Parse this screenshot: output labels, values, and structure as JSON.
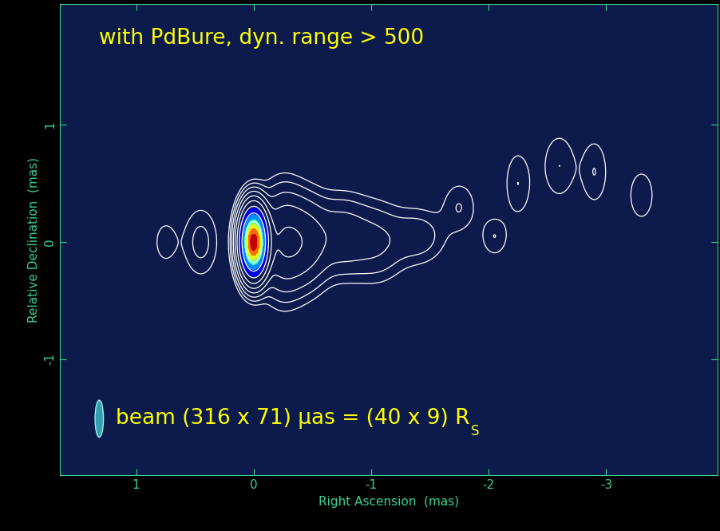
{
  "chart_data": {
    "type": "contour",
    "annotations": [
      "with PdBure, dyn. range > 500"
    ],
    "beam_label": {
      "text": "beam (316 x 71) μas = (40 x 9) R",
      "subscript": "S"
    },
    "beam": {
      "major": 316,
      "minor": 71
    },
    "x_label": "Right Ascension  (mas)",
    "y_label": "Relative Declination  (mas)",
    "xlim": [
      1.65,
      -3.95
    ],
    "ylim": [
      -1.99,
      2.03
    ],
    "xticks": [
      1,
      0,
      -1,
      -2,
      -3
    ],
    "yticks": [
      -1,
      0,
      1
    ],
    "components": [
      {
        "x": 0.0,
        "y": 0.0,
        "flux": 1.0,
        "size_x": 0.06,
        "size_y": 0.15
      },
      {
        "x": -0.25,
        "y": 0.0,
        "flux": 0.03,
        "size_x": 0.12,
        "size_y": 0.25
      },
      {
        "x": -0.45,
        "y": 0.0,
        "flux": 0.02,
        "size_x": 0.12,
        "size_y": 0.22
      },
      {
        "x": -0.75,
        "y": 0.05,
        "flux": 0.012,
        "size_x": 0.15,
        "size_y": 0.2
      },
      {
        "x": -1.05,
        "y": 0.0,
        "flux": 0.008,
        "size_x": 0.15,
        "size_y": 0.2
      },
      {
        "x": -1.4,
        "y": 0.05,
        "flux": 0.006,
        "size_x": 0.15,
        "size_y": 0.15
      },
      {
        "x": -1.75,
        "y": 0.3,
        "flux": 0.004,
        "size_x": 0.1,
        "size_y": 0.15
      },
      {
        "x": -2.05,
        "y": 0.05,
        "flux": 0.004,
        "size_x": 0.08,
        "size_y": 0.12
      },
      {
        "x": -2.25,
        "y": 0.5,
        "flux": 0.004,
        "size_x": 0.08,
        "size_y": 0.2
      },
      {
        "x": -2.6,
        "y": 0.65,
        "flux": 0.004,
        "size_x": 0.1,
        "size_y": 0.2
      },
      {
        "x": -2.9,
        "y": 0.6,
        "flux": 0.004,
        "size_x": 0.08,
        "size_y": 0.2
      },
      {
        "x": -3.3,
        "y": 0.4,
        "flux": 0.003,
        "size_x": 0.1,
        "size_y": 0.2
      },
      {
        "x": 0.45,
        "y": 0.0,
        "flux": 0.005,
        "size_x": 0.1,
        "size_y": 0.2
      },
      {
        "x": 0.75,
        "y": 0.0,
        "flux": 0.003,
        "size_x": 0.08,
        "size_y": 0.15
      }
    ],
    "contour_levels": [
      0.002,
      0.004,
      0.008,
      0.016,
      0.032,
      0.064,
      0.128,
      0.256,
      0.512
    ],
    "fill_levels": [
      0.15,
      0.3,
      0.45,
      0.6,
      0.75,
      0.9,
      1.0
    ]
  }
}
